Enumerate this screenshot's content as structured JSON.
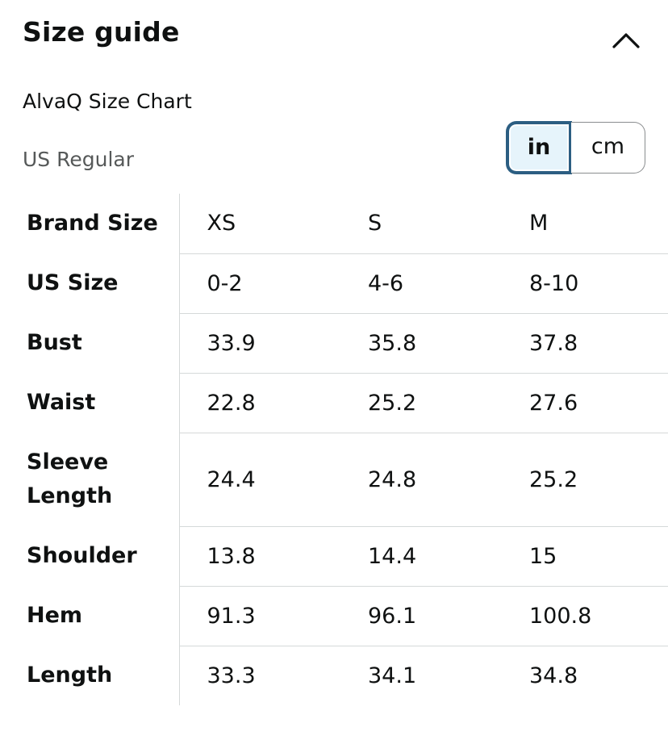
{
  "header": {
    "title": "Size guide",
    "collapse_icon": "chevron-up-icon"
  },
  "chart": {
    "name": "AlvaQ Size Chart",
    "size_system": "US Regular"
  },
  "units": {
    "options": [
      "in",
      "cm"
    ],
    "selected": "in"
  },
  "table": {
    "rows": [
      {
        "label": "Brand Size",
        "values": [
          "XS",
          "S",
          "M"
        ]
      },
      {
        "label": "US Size",
        "values": [
          "0-2",
          "4-6",
          "8-10"
        ]
      },
      {
        "label": "Bust",
        "values": [
          "33.9",
          "35.8",
          "37.8"
        ]
      },
      {
        "label": "Waist",
        "values": [
          "22.8",
          "25.2",
          "27.6"
        ]
      },
      {
        "label": "Sleeve Length",
        "values": [
          "24.4",
          "24.8",
          "25.2"
        ]
      },
      {
        "label": "Shoulder",
        "values": [
          "13.8",
          "14.4",
          "15"
        ]
      },
      {
        "label": "Hem",
        "values": [
          "91.3",
          "96.1",
          "100.8"
        ]
      },
      {
        "label": "Length",
        "values": [
          "33.3",
          "34.1",
          "34.8"
        ]
      }
    ]
  }
}
